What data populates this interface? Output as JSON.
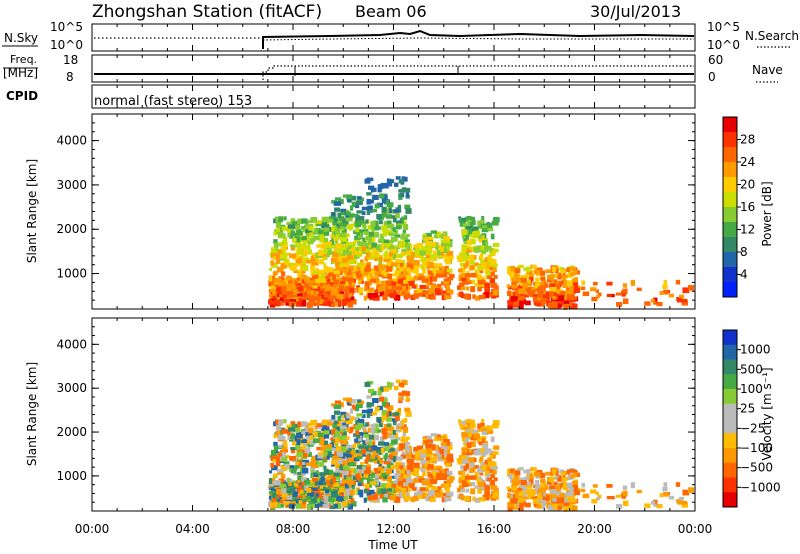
{
  "header": {
    "title": "Zhongshan Station (fitACF)",
    "beam": "Beam 06",
    "date": "30/Jul/2013"
  },
  "top_panels": {
    "nsky": {
      "left_label": "N.Sky",
      "right_label": "N.Search",
      "left_ticks": [
        "10^5",
        "10^0"
      ],
      "right_ticks": [
        "10^5",
        "10^0"
      ]
    },
    "freq": {
      "left_label_line1": "Freq.",
      "left_label_line2": "[MHz]",
      "left_ticks": [
        "18",
        "8"
      ],
      "right_label": "Nave",
      "right_ticks": [
        "60",
        "0"
      ]
    },
    "cpid": {
      "label": "CPID",
      "value": "normal (fast stereo) 153"
    }
  },
  "chart_data": [
    {
      "type": "heatmap",
      "name": "power",
      "ylabel": "Slant Range [km]",
      "yticks": [
        1000,
        2000,
        3000,
        4000
      ],
      "ylim": [
        200,
        4600
      ],
      "xlim": [
        0,
        24
      ],
      "colorbar_label": "Power [dB]",
      "colorbar_ticks": [
        "28",
        "24",
        "20",
        "16",
        "12",
        "8",
        "4"
      ],
      "colorbar_colors": [
        "#e60000",
        "#ff3300",
        "#ff6600",
        "#ff9900",
        "#ffcc00",
        "#ccdd00",
        "#88cc33",
        "#44aa44",
        "#338866",
        "#2266aa",
        "#1133cc",
        "#0022ff"
      ]
    },
    {
      "type": "heatmap",
      "name": "velocity",
      "ylabel": "Slant Range [km]",
      "yticks": [
        1000,
        2000,
        3000,
        4000
      ],
      "ylim": [
        200,
        4600
      ],
      "xlim": [
        0,
        24
      ],
      "colorbar_label": "Velocity [m s⁻¹]",
      "colorbar_ticks": [
        "1000",
        "500",
        "100",
        "25",
        "−25",
        "−100",
        "−500",
        "−1000"
      ],
      "colorbar_colors": [
        "#1133cc",
        "#2266aa",
        "#338866",
        "#44aa44",
        "#88cc33",
        "#bbbbbb",
        "#bbbbbb",
        "#ffbb00",
        "#ff9900",
        "#ff6600",
        "#ff3300",
        "#e60000"
      ]
    }
  ],
  "x_axis": {
    "label": "Time UT",
    "ticks": [
      "00:00",
      "04:00",
      "08:00",
      "12:00",
      "16:00",
      "20:00",
      "00:00"
    ],
    "tick_hours": [
      0,
      4,
      8,
      12,
      16,
      20,
      24
    ]
  },
  "colors": {
    "axis": "#000000",
    "background": "#ffffff"
  }
}
